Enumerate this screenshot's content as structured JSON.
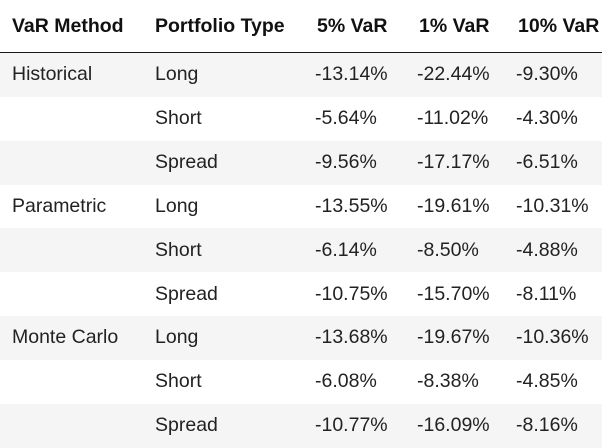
{
  "table": {
    "headers": {
      "method": "VaR Method",
      "portfolio_type": "Portfolio Type",
      "var5": "5% VaR",
      "var1": "1% VaR",
      "var10": "10% VaR"
    },
    "rows": [
      {
        "method": "Historical",
        "portfolio_type": "Long",
        "var5": "-13.14%",
        "var1": "-22.44%",
        "var10": "-9.30%"
      },
      {
        "method": "",
        "portfolio_type": "Short",
        "var5": "-5.64%",
        "var1": "-11.02%",
        "var10": "-4.30%"
      },
      {
        "method": "",
        "portfolio_type": "Spread",
        "var5": "-9.56%",
        "var1": "-17.17%",
        "var10": "-6.51%"
      },
      {
        "method": "Parametric",
        "portfolio_type": "Long",
        "var5": "-13.55%",
        "var1": "-19.61%",
        "var10": "-10.31%"
      },
      {
        "method": "",
        "portfolio_type": "Short",
        "var5": "-6.14%",
        "var1": "-8.50%",
        "var10": "-4.88%"
      },
      {
        "method": "",
        "portfolio_type": "Spread",
        "var5": "-10.75%",
        "var1": "-15.70%",
        "var10": "-8.11%"
      },
      {
        "method": "Monte Carlo",
        "portfolio_type": "Long",
        "var5": "-13.68%",
        "var1": "-19.67%",
        "var10": "-10.36%"
      },
      {
        "method": "",
        "portfolio_type": "Short",
        "var5": "-6.08%",
        "var1": "-8.38%",
        "var10": "-4.85%"
      },
      {
        "method": "",
        "portfolio_type": "Spread",
        "var5": "-10.77%",
        "var1": "-16.09%",
        "var10": "-8.16%"
      }
    ]
  }
}
